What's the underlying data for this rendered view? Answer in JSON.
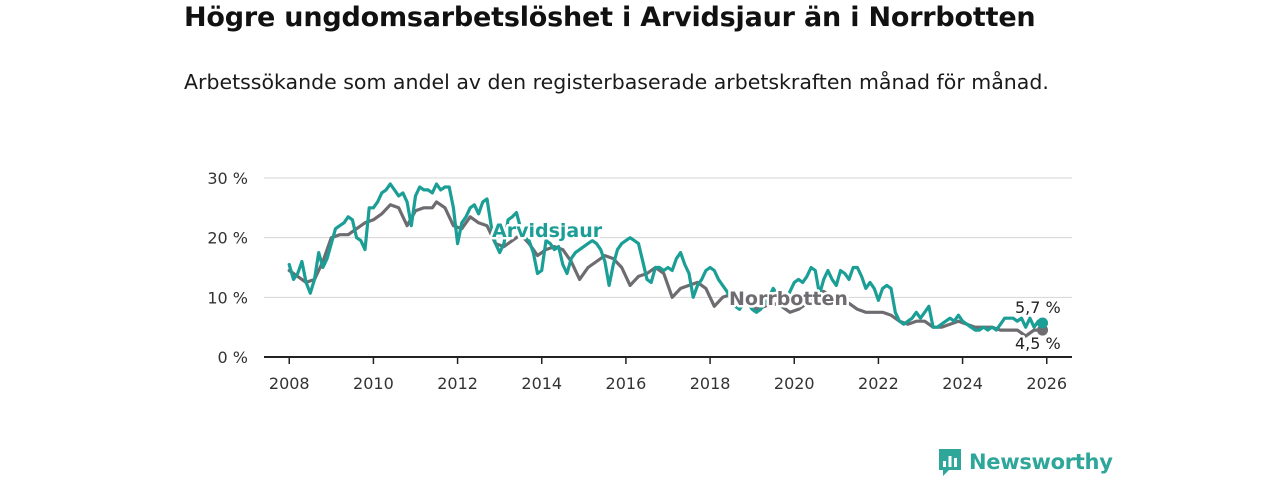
{
  "title": "Högre ungdomsarbetslöshet i Arvidsjaur än i Norrbotten",
  "subtitle": "Arbetssökande som andel av den registerbaserade arbetskraften månad för månad.",
  "brand": {
    "name": "Newsworthy",
    "color": "#2ea79a"
  },
  "chart_data": {
    "type": "line",
    "title": "Högre ungdomsarbetslöshet i Arvidsjaur än i Norrbotten",
    "xlabel": "",
    "ylabel": "",
    "xlim": [
      2007.4,
      2026.6
    ],
    "ylim": [
      0,
      30
    ],
    "y_ticks": [
      0,
      10,
      20,
      30
    ],
    "y_tick_labels": [
      "0 %",
      "10 %",
      "20 %",
      "30 %"
    ],
    "x_ticks": [
      2008,
      2010,
      2012,
      2014,
      2016,
      2018,
      2020,
      2022,
      2024,
      2026
    ],
    "x_tick_labels": [
      "2008",
      "2010",
      "2012",
      "2014",
      "2016",
      "2018",
      "2020",
      "2022",
      "2024",
      "2026"
    ],
    "grid": true,
    "series": [
      {
        "name": "Arvidsjaur",
        "color": "#1a9e96",
        "end_label": "5,7 %",
        "points": [
          [
            2008.0,
            15.5
          ],
          [
            2008.1,
            13.0
          ],
          [
            2008.2,
            14.0
          ],
          [
            2008.3,
            16.0
          ],
          [
            2008.4,
            12.5
          ],
          [
            2008.5,
            10.7
          ],
          [
            2008.6,
            13.0
          ],
          [
            2008.7,
            17.5
          ],
          [
            2008.8,
            15.0
          ],
          [
            2008.9,
            16.5
          ],
          [
            2009.0,
            19.0
          ],
          [
            2009.1,
            21.5
          ],
          [
            2009.2,
            22.0
          ],
          [
            2009.3,
            22.5
          ],
          [
            2009.4,
            23.5
          ],
          [
            2009.5,
            23.0
          ],
          [
            2009.6,
            20.0
          ],
          [
            2009.7,
            19.5
          ],
          [
            2009.8,
            18.0
          ],
          [
            2009.9,
            25.0
          ],
          [
            2010.0,
            25.0
          ],
          [
            2010.1,
            26.0
          ],
          [
            2010.2,
            27.5
          ],
          [
            2010.3,
            28.0
          ],
          [
            2010.4,
            29.0
          ],
          [
            2010.5,
            28.0
          ],
          [
            2010.6,
            27.0
          ],
          [
            2010.7,
            27.5
          ],
          [
            2010.8,
            26.0
          ],
          [
            2010.9,
            22.0
          ],
          [
            2011.0,
            27.0
          ],
          [
            2011.1,
            28.5
          ],
          [
            2011.2,
            28.0
          ],
          [
            2011.3,
            28.0
          ],
          [
            2011.4,
            27.5
          ],
          [
            2011.5,
            29.0
          ],
          [
            2011.6,
            28.0
          ],
          [
            2011.7,
            28.5
          ],
          [
            2011.8,
            28.5
          ],
          [
            2011.9,
            25.0
          ],
          [
            2012.0,
            19.0
          ],
          [
            2012.1,
            22.5
          ],
          [
            2012.2,
            23.5
          ],
          [
            2012.3,
            25.0
          ],
          [
            2012.4,
            25.5
          ],
          [
            2012.5,
            24.0
          ],
          [
            2012.6,
            26.0
          ],
          [
            2012.7,
            26.5
          ],
          [
            2012.8,
            22.0
          ],
          [
            2012.9,
            19.0
          ],
          [
            2013.0,
            17.5
          ],
          [
            2013.1,
            19.0
          ],
          [
            2013.2,
            23.0
          ],
          [
            2013.3,
            23.5
          ],
          [
            2013.4,
            24.2
          ],
          [
            2013.5,
            21.5
          ],
          [
            2013.6,
            20.0
          ],
          [
            2013.7,
            19.5
          ],
          [
            2013.8,
            17.5
          ],
          [
            2013.9,
            14.0
          ],
          [
            2014.0,
            14.5
          ],
          [
            2014.1,
            19.5
          ],
          [
            2014.2,
            19.0
          ],
          [
            2014.3,
            18.0
          ],
          [
            2014.4,
            18.5
          ],
          [
            2014.5,
            15.5
          ],
          [
            2014.6,
            14.0
          ],
          [
            2014.7,
            16.5
          ],
          [
            2014.8,
            17.5
          ],
          [
            2014.9,
            18.0
          ],
          [
            2015.0,
            18.5
          ],
          [
            2015.1,
            19.0
          ],
          [
            2015.2,
            19.5
          ],
          [
            2015.3,
            19.0
          ],
          [
            2015.4,
            18.0
          ],
          [
            2015.5,
            16.0
          ],
          [
            2015.6,
            12.0
          ],
          [
            2015.7,
            15.5
          ],
          [
            2015.8,
            18.0
          ],
          [
            2015.9,
            19.0
          ],
          [
            2016.0,
            19.5
          ],
          [
            2016.1,
            20.0
          ],
          [
            2016.2,
            19.5
          ],
          [
            2016.3,
            19.0
          ],
          [
            2016.4,
            16.0
          ],
          [
            2016.5,
            13.0
          ],
          [
            2016.6,
            12.5
          ],
          [
            2016.7,
            15.0
          ],
          [
            2016.8,
            15.0
          ],
          [
            2016.9,
            14.5
          ],
          [
            2017.0,
            15.0
          ],
          [
            2017.1,
            14.5
          ],
          [
            2017.2,
            16.5
          ],
          [
            2017.3,
            17.5
          ],
          [
            2017.4,
            15.5
          ],
          [
            2017.5,
            14.0
          ],
          [
            2017.6,
            10.0
          ],
          [
            2017.7,
            12.0
          ],
          [
            2017.8,
            13.0
          ],
          [
            2017.9,
            14.5
          ],
          [
            2018.0,
            15.0
          ],
          [
            2018.1,
            14.5
          ],
          [
            2018.2,
            13.0
          ],
          [
            2018.3,
            12.0
          ],
          [
            2018.4,
            11.0
          ],
          [
            2018.5,
            9.5
          ],
          [
            2018.6,
            8.5
          ],
          [
            2018.7,
            8.0
          ],
          [
            2018.8,
            9.0
          ],
          [
            2018.9,
            9.0
          ],
          [
            2019.0,
            8.0
          ],
          [
            2019.1,
            7.5
          ],
          [
            2019.2,
            8.0
          ],
          [
            2019.3,
            9.0
          ],
          [
            2019.4,
            10.0
          ],
          [
            2019.5,
            11.5
          ],
          [
            2019.6,
            10.5
          ],
          [
            2019.7,
            8.5
          ],
          [
            2019.8,
            9.5
          ],
          [
            2019.9,
            11.0
          ],
          [
            2020.0,
            12.5
          ],
          [
            2020.1,
            13.0
          ],
          [
            2020.2,
            12.5
          ],
          [
            2020.3,
            13.5
          ],
          [
            2020.4,
            15.0
          ],
          [
            2020.5,
            14.5
          ],
          [
            2020.6,
            10.5
          ],
          [
            2020.7,
            13.0
          ],
          [
            2020.8,
            14.5
          ],
          [
            2020.9,
            13.0
          ],
          [
            2021.0,
            12.0
          ],
          [
            2021.1,
            14.5
          ],
          [
            2021.2,
            14.0
          ],
          [
            2021.3,
            13.0
          ],
          [
            2021.4,
            15.0
          ],
          [
            2021.5,
            15.0
          ],
          [
            2021.6,
            13.5
          ],
          [
            2021.7,
            11.5
          ],
          [
            2021.8,
            12.5
          ],
          [
            2021.9,
            11.5
          ],
          [
            2022.0,
            9.5
          ],
          [
            2022.1,
            11.5
          ],
          [
            2022.2,
            12.0
          ],
          [
            2022.3,
            11.5
          ],
          [
            2022.4,
            7.5
          ],
          [
            2022.5,
            6.0
          ],
          [
            2022.6,
            5.5
          ],
          [
            2022.7,
            6.0
          ],
          [
            2022.8,
            6.5
          ],
          [
            2022.9,
            7.5
          ],
          [
            2023.0,
            6.5
          ],
          [
            2023.1,
            7.5
          ],
          [
            2023.2,
            8.5
          ],
          [
            2023.3,
            5.0
          ],
          [
            2023.4,
            5.0
          ],
          [
            2023.5,
            5.5
          ],
          [
            2023.6,
            6.0
          ],
          [
            2023.7,
            6.5
          ],
          [
            2023.8,
            6.0
          ],
          [
            2023.9,
            7.0
          ],
          [
            2024.0,
            6.0
          ],
          [
            2024.1,
            5.5
          ],
          [
            2024.2,
            5.0
          ],
          [
            2024.3,
            4.5
          ],
          [
            2024.4,
            4.5
          ],
          [
            2024.5,
            5.0
          ],
          [
            2024.6,
            4.5
          ],
          [
            2024.7,
            5.0
          ],
          [
            2024.8,
            4.5
          ],
          [
            2024.9,
            5.5
          ],
          [
            2025.0,
            6.5
          ],
          [
            2025.1,
            6.5
          ],
          [
            2025.2,
            6.5
          ],
          [
            2025.3,
            6.0
          ],
          [
            2025.4,
            6.5
          ],
          [
            2025.5,
            5.0
          ],
          [
            2025.6,
            6.5
          ],
          [
            2025.7,
            5.0
          ],
          [
            2025.8,
            6.0
          ],
          [
            2025.9,
            5.7
          ]
        ]
      },
      {
        "name": "Norrbotten",
        "color": "#6e6c70",
        "end_label": "4,5 %",
        "points": [
          [
            2008.0,
            14.5
          ],
          [
            2008.2,
            13.5
          ],
          [
            2008.4,
            12.5
          ],
          [
            2008.6,
            13.0
          ],
          [
            2008.8,
            16.0
          ],
          [
            2009.0,
            20.0
          ],
          [
            2009.2,
            20.5
          ],
          [
            2009.4,
            20.5
          ],
          [
            2009.6,
            21.5
          ],
          [
            2009.8,
            22.5
          ],
          [
            2010.0,
            23.0
          ],
          [
            2010.2,
            24.0
          ],
          [
            2010.4,
            25.5
          ],
          [
            2010.6,
            25.0
          ],
          [
            2010.8,
            22.0
          ],
          [
            2011.0,
            24.5
          ],
          [
            2011.2,
            25.0
          ],
          [
            2011.4,
            25.0
          ],
          [
            2011.5,
            26.0
          ],
          [
            2011.7,
            25.0
          ],
          [
            2011.9,
            22.0
          ],
          [
            2012.1,
            21.5
          ],
          [
            2012.3,
            23.5
          ],
          [
            2012.5,
            22.5
          ],
          [
            2012.7,
            22.0
          ],
          [
            2012.9,
            19.0
          ],
          [
            2013.1,
            18.5
          ],
          [
            2013.3,
            19.5
          ],
          [
            2013.5,
            20.5
          ],
          [
            2013.7,
            19.0
          ],
          [
            2013.9,
            17.0
          ],
          [
            2014.1,
            18.0
          ],
          [
            2014.3,
            18.5
          ],
          [
            2014.5,
            18.0
          ],
          [
            2014.7,
            16.0
          ],
          [
            2014.9,
            13.0
          ],
          [
            2015.1,
            15.0
          ],
          [
            2015.3,
            16.0
          ],
          [
            2015.5,
            17.0
          ],
          [
            2015.7,
            16.5
          ],
          [
            2015.9,
            15.0
          ],
          [
            2016.1,
            12.0
          ],
          [
            2016.3,
            13.5
          ],
          [
            2016.5,
            14.0
          ],
          [
            2016.7,
            15.0
          ],
          [
            2016.9,
            14.0
          ],
          [
            2017.1,
            10.0
          ],
          [
            2017.3,
            11.5
          ],
          [
            2017.5,
            12.0
          ],
          [
            2017.7,
            12.5
          ],
          [
            2017.9,
            11.5
          ],
          [
            2018.1,
            8.5
          ],
          [
            2018.3,
            10.0
          ],
          [
            2018.5,
            10.5
          ],
          [
            2018.7,
            11.0
          ],
          [
            2018.9,
            10.0
          ],
          [
            2019.1,
            8.0
          ],
          [
            2019.3,
            8.5
          ],
          [
            2019.5,
            9.0
          ],
          [
            2019.7,
            8.5
          ],
          [
            2019.9,
            7.5
          ],
          [
            2020.1,
            8.0
          ],
          [
            2020.3,
            9.0
          ],
          [
            2020.5,
            10.5
          ],
          [
            2020.7,
            11.0
          ],
          [
            2020.9,
            10.0
          ],
          [
            2021.1,
            9.0
          ],
          [
            2021.3,
            9.0
          ],
          [
            2021.5,
            8.0
          ],
          [
            2021.7,
            7.5
          ],
          [
            2021.9,
            7.5
          ],
          [
            2022.1,
            7.5
          ],
          [
            2022.3,
            7.0
          ],
          [
            2022.5,
            6.0
          ],
          [
            2022.7,
            5.5
          ],
          [
            2022.9,
            6.0
          ],
          [
            2023.1,
            6.0
          ],
          [
            2023.3,
            5.0
          ],
          [
            2023.5,
            5.0
          ],
          [
            2023.7,
            5.5
          ],
          [
            2023.9,
            6.0
          ],
          [
            2024.1,
            5.5
          ],
          [
            2024.3,
            5.0
          ],
          [
            2024.5,
            5.0
          ],
          [
            2024.7,
            5.0
          ],
          [
            2024.9,
            4.5
          ],
          [
            2025.1,
            4.5
          ],
          [
            2025.3,
            4.5
          ],
          [
            2025.5,
            3.5
          ],
          [
            2025.7,
            4.5
          ],
          [
            2025.9,
            4.5
          ]
        ]
      }
    ]
  }
}
